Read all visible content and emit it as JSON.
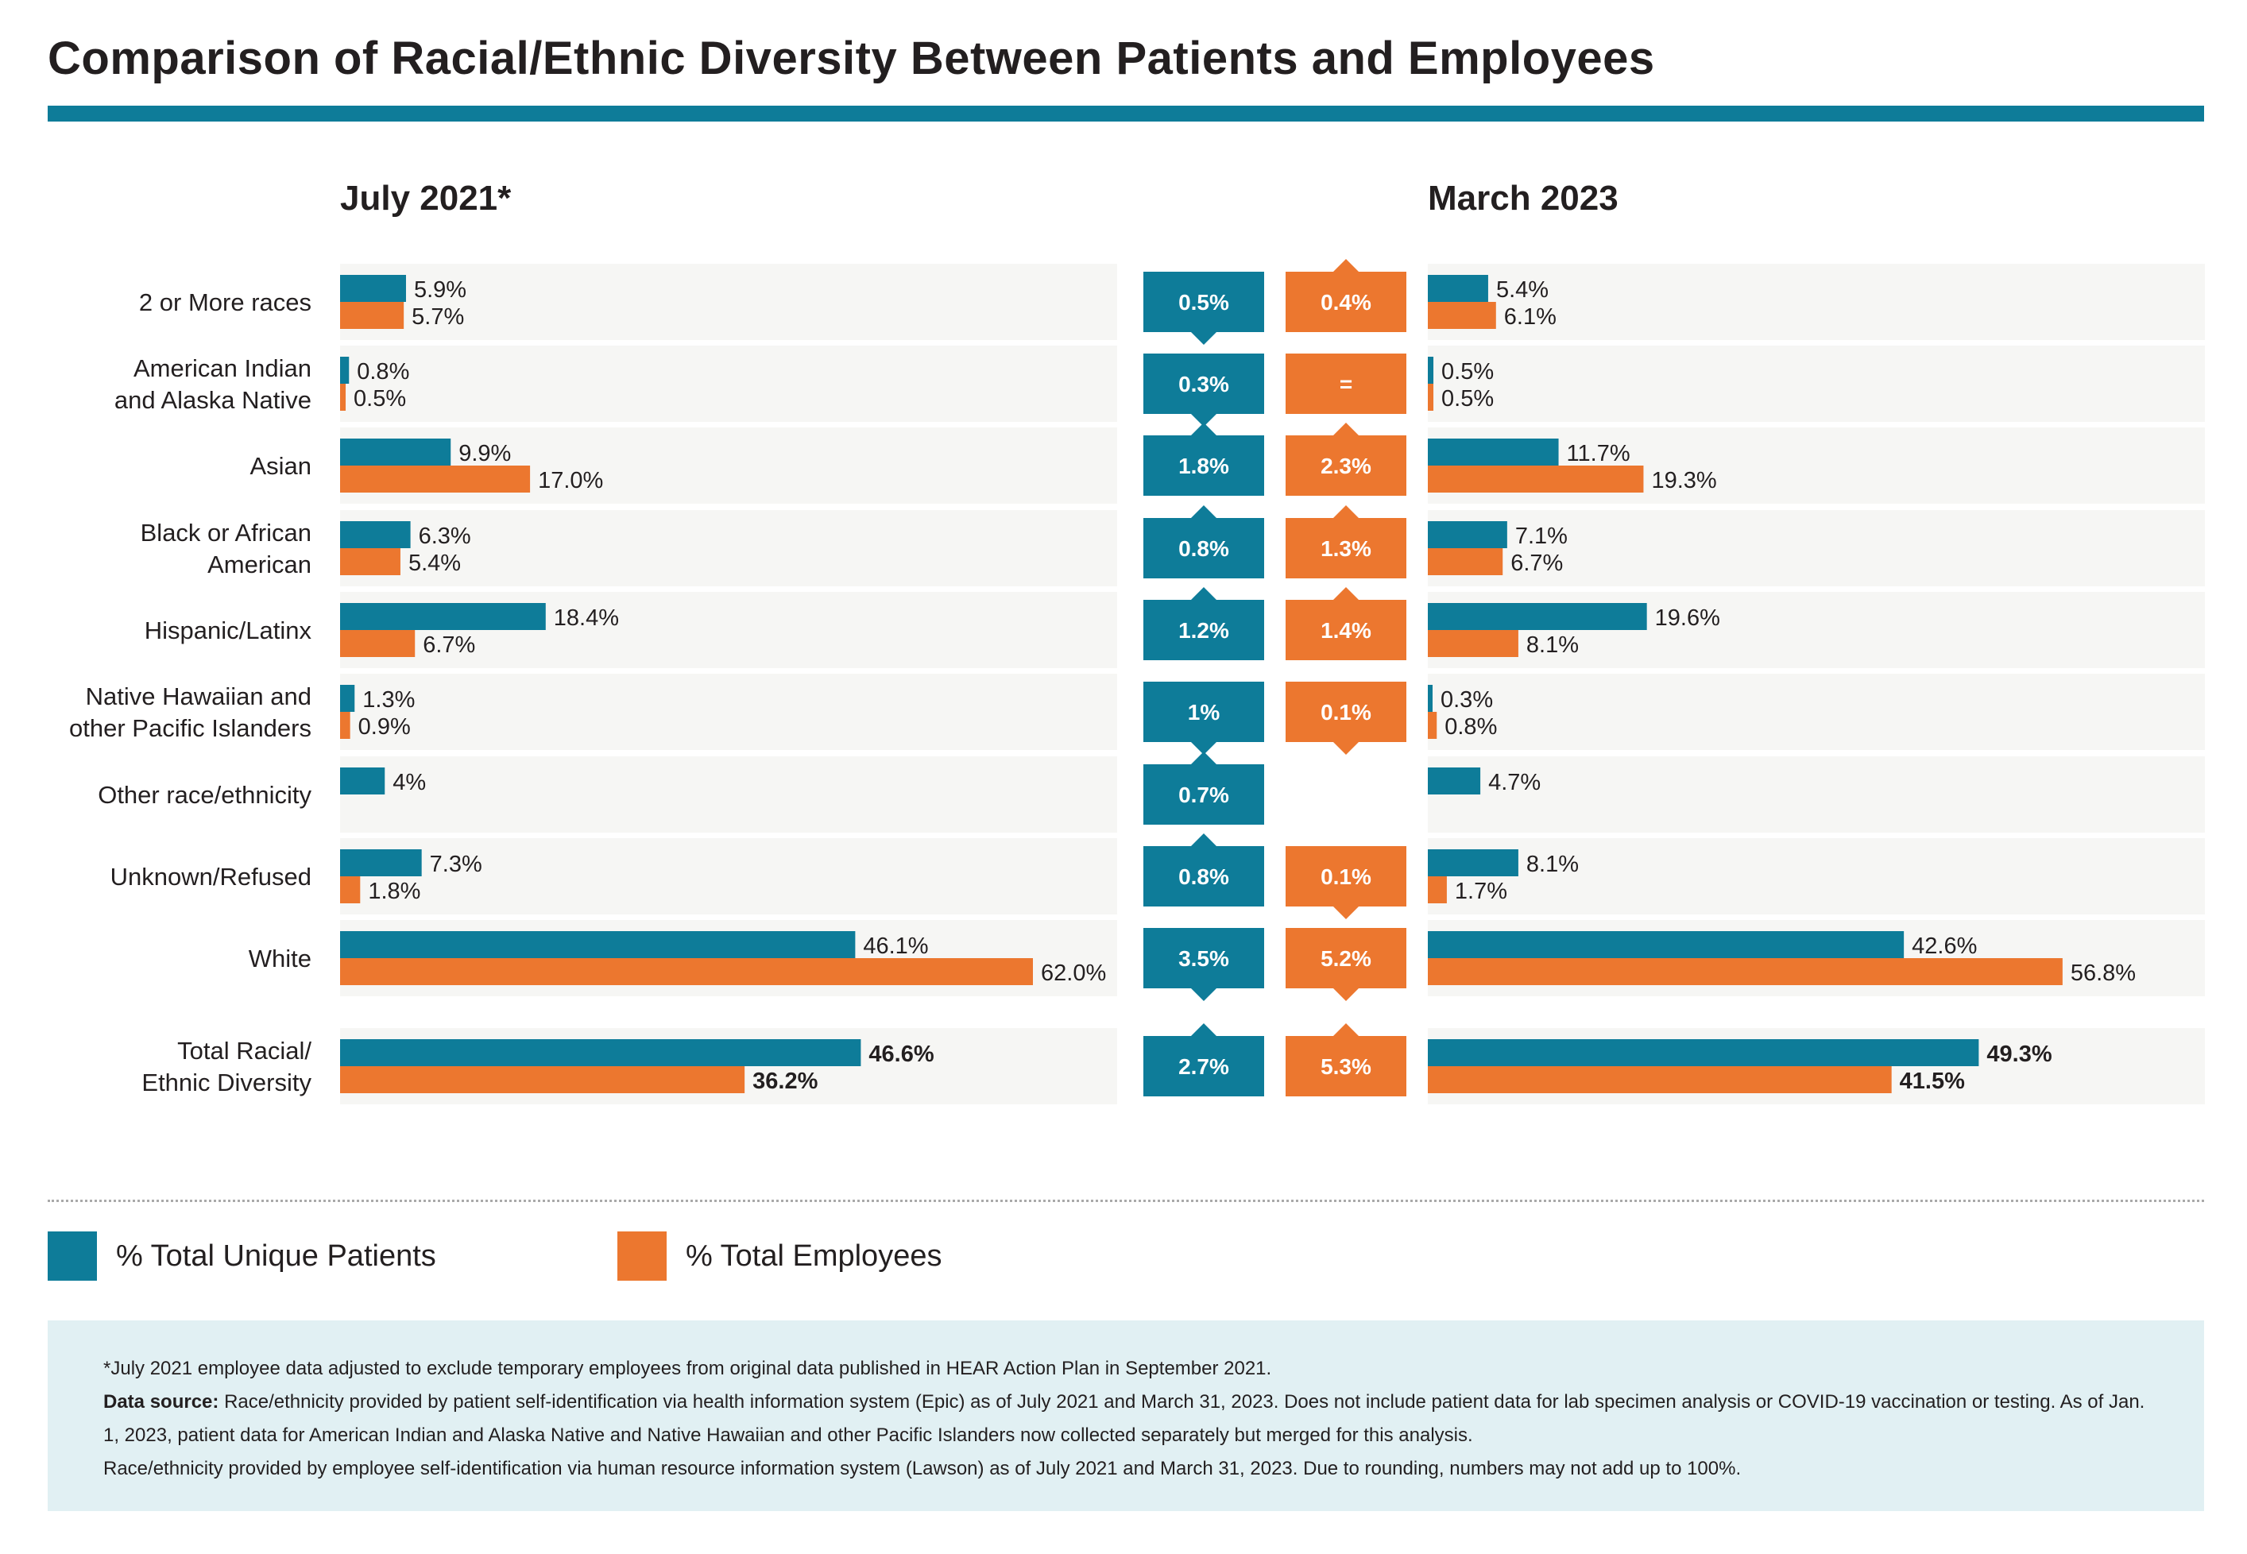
{
  "title": "Comparison of Racial/Ethnic Diversity Between Patients and Employees",
  "periods": {
    "left": "July 2021*",
    "right": "March 2023"
  },
  "colors": {
    "patients": "#0e7c99",
    "employees": "#ec772f",
    "row_bg": "#f6f6f4",
    "text": "#231f20"
  },
  "legend": {
    "patients": "% Total Unique Patients",
    "employees": "% Total Employees"
  },
  "notes": {
    "footnote": "*July 2021 employee data adjusted to exclude temporary employees from original data published in HEAR Action Plan in September 2021.",
    "source_label": "Data source:",
    "source_text": "Race/ethnicity provided by patient self-identification via health information system (Epic) as of July 2021 and March 31, 2023. Does not include patient data for lab specimen analysis or COVID-19 vaccination or testing. As of Jan. 1, 2023, patient data for American Indian and Alaska Native and Native Hawaiian and other Pacific Islanders now collected separately but merged for this analysis.",
    "source_text_2": "Race/ethnicity provided by employee self-identification via human resource information system (Lawson) as of July 2021 and March 31, 2023. Due to rounding, numbers may not add up to 100%."
  },
  "chart_data": {
    "type": "bar",
    "orientation": "horizontal",
    "xlim": [
      0,
      62
    ],
    "categories": [
      [
        "2 or More races"
      ],
      [
        "American Indian",
        "and Alaska Native"
      ],
      [
        "Asian"
      ],
      [
        "Black or African",
        "American"
      ],
      [
        "Hispanic/Latinx"
      ],
      [
        "Native Hawaiian and",
        "other Pacific Islanders"
      ],
      [
        "Other race/ethnicity"
      ],
      [
        "Unknown/Refused"
      ],
      [
        "White"
      ],
      [
        "Total Racial/",
        "Ethnic Diversity"
      ]
    ],
    "july_2021": {
      "patients": [
        5.9,
        0.8,
        9.9,
        6.3,
        18.4,
        1.3,
        4,
        7.3,
        46.1,
        46.6
      ],
      "employees": [
        5.7,
        0.5,
        17.0,
        5.4,
        6.7,
        0.9,
        null,
        1.8,
        62.0,
        36.2
      ],
      "patients_labels": [
        "5.9%",
        "0.8%",
        "9.9%",
        "6.3%",
        "18.4%",
        "1.3%",
        "4%",
        "7.3%",
        "46.1%",
        "46.6%"
      ],
      "employees_labels": [
        "5.7%",
        "0.5%",
        "17.0%",
        "5.4%",
        "6.7%",
        "0.9%",
        "",
        "1.8%",
        "62.0%",
        "36.2%"
      ]
    },
    "march_2023": {
      "patients": [
        5.4,
        0.5,
        11.7,
        7.1,
        19.6,
        0.3,
        4.7,
        8.1,
        42.6,
        49.3
      ],
      "employees": [
        6.1,
        0.5,
        19.3,
        6.7,
        8.1,
        0.8,
        null,
        1.7,
        56.8,
        41.5
      ],
      "patients_labels": [
        "5.4%",
        "0.5%",
        "11.7%",
        "7.1%",
        "19.6%",
        "0.3%",
        "4.7%",
        "8.1%",
        "42.6%",
        "49.3%"
      ],
      "employees_labels": [
        "6.1%",
        "0.5%",
        "19.3%",
        "6.7%",
        "8.1%",
        "0.8%",
        "",
        "1.7%",
        "56.8%",
        "41.5%"
      ]
    },
    "change": {
      "patients_labels": [
        "0.5%",
        "0.3%",
        "1.8%",
        "0.8%",
        "1.2%",
        "1%",
        "0.7%",
        "0.8%",
        "3.5%",
        "2.7%"
      ],
      "patients_direction": [
        "down",
        "down",
        "up",
        "up",
        "up",
        "down",
        "up",
        "up",
        "down",
        "up"
      ],
      "employees_labels": [
        "0.4%",
        "=",
        "2.3%",
        "1.3%",
        "1.4%",
        "0.1%",
        "",
        "0.1%",
        "5.2%",
        "5.3%"
      ],
      "employees_direction": [
        "up",
        "none",
        "up",
        "up",
        "up",
        "down",
        "none",
        "down",
        "down",
        "up"
      ]
    },
    "bold_rows": [
      9
    ]
  }
}
